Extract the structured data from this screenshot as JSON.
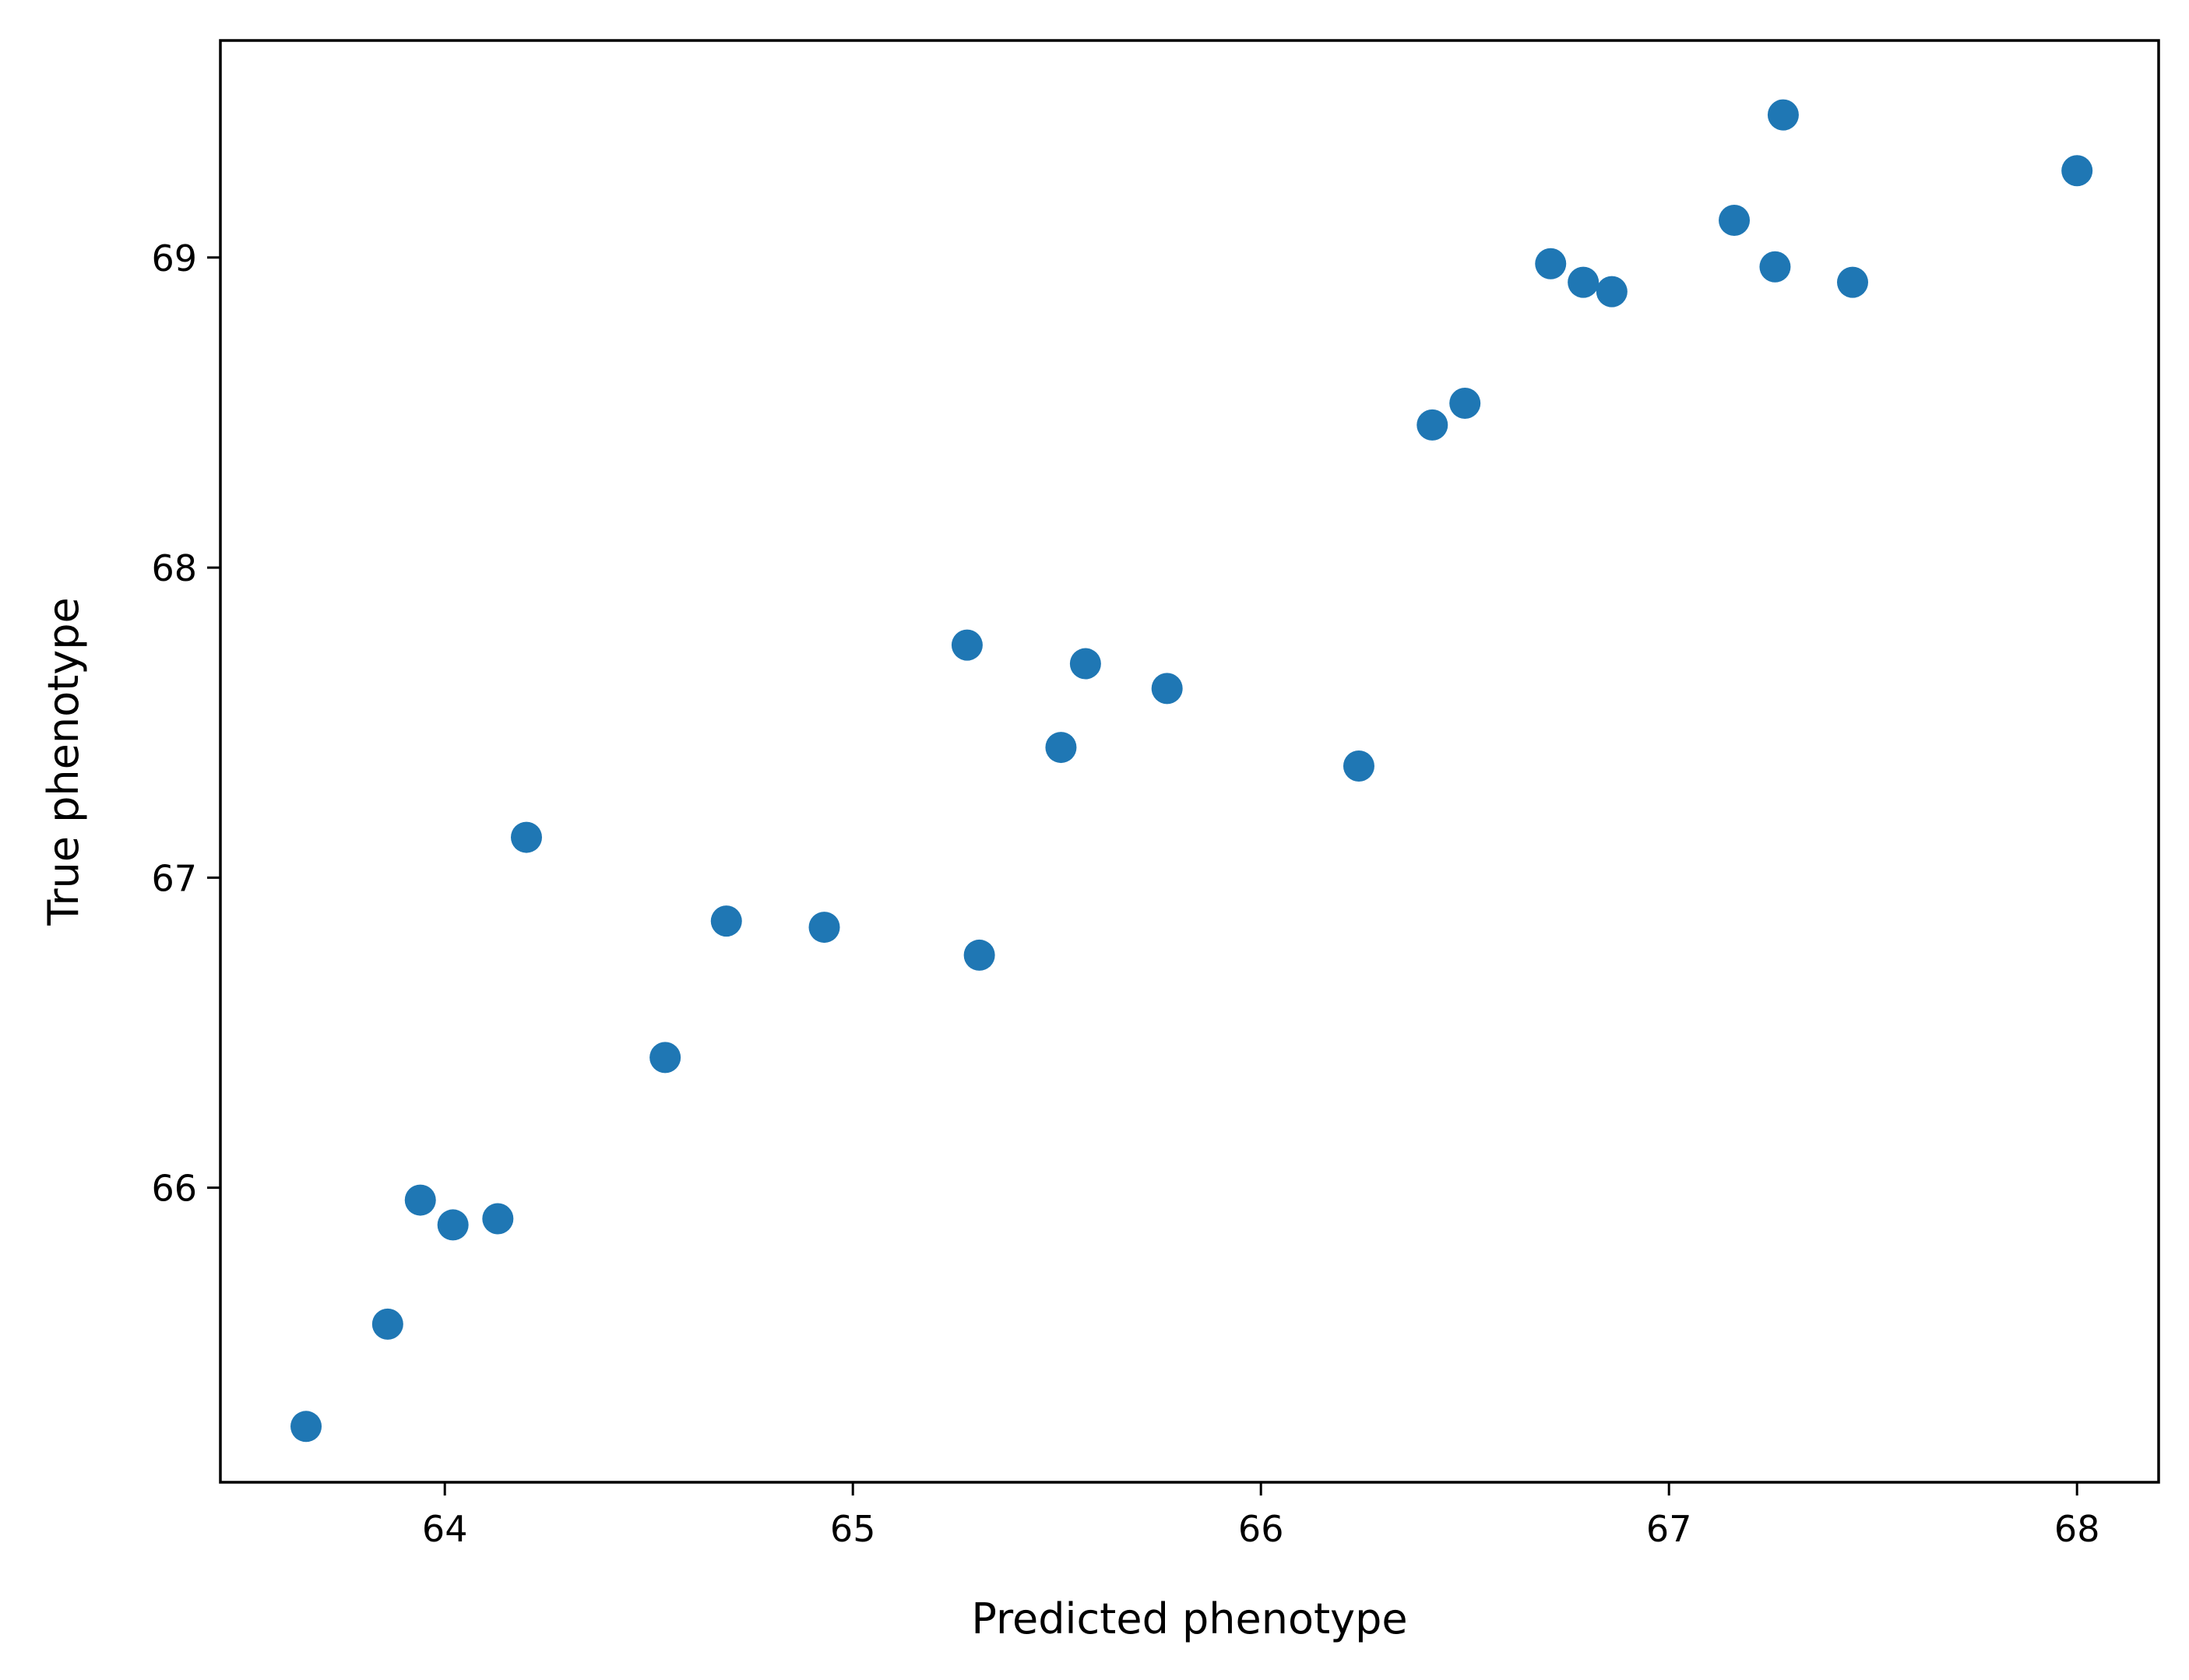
{
  "chart_data": {
    "type": "scatter",
    "title": "",
    "xlabel": "Predicted phenotype",
    "ylabel": "True phenotype",
    "xlim": [
      63.45,
      68.2
    ],
    "ylim": [
      65.05,
      69.7
    ],
    "xticks": [
      64,
      65,
      66,
      67,
      68
    ],
    "yticks": [
      66,
      67,
      68,
      69
    ],
    "grid": false,
    "marker_color": "#1f77b4",
    "series": [
      {
        "points": [
          {
            "x": 63.66,
            "y": 65.23
          },
          {
            "x": 63.86,
            "y": 65.56
          },
          {
            "x": 63.94,
            "y": 65.96
          },
          {
            "x": 64.02,
            "y": 65.88
          },
          {
            "x": 64.13,
            "y": 65.9
          },
          {
            "x": 64.2,
            "y": 67.13
          },
          {
            "x": 64.54,
            "y": 66.42
          },
          {
            "x": 64.69,
            "y": 66.86
          },
          {
            "x": 64.93,
            "y": 66.84
          },
          {
            "x": 65.28,
            "y": 67.75
          },
          {
            "x": 65.31,
            "y": 66.75
          },
          {
            "x": 65.51,
            "y": 67.42
          },
          {
            "x": 65.57,
            "y": 67.69
          },
          {
            "x": 65.77,
            "y": 67.61
          },
          {
            "x": 66.24,
            "y": 67.36
          },
          {
            "x": 66.42,
            "y": 68.46
          },
          {
            "x": 66.5,
            "y": 68.53
          },
          {
            "x": 66.71,
            "y": 68.98
          },
          {
            "x": 66.79,
            "y": 68.92
          },
          {
            "x": 66.86,
            "y": 68.89
          },
          {
            "x": 67.16,
            "y": 69.12
          },
          {
            "x": 67.26,
            "y": 68.97
          },
          {
            "x": 67.28,
            "y": 69.46
          },
          {
            "x": 67.45,
            "y": 68.92
          },
          {
            "x": 68.0,
            "y": 69.28
          }
        ]
      }
    ]
  }
}
